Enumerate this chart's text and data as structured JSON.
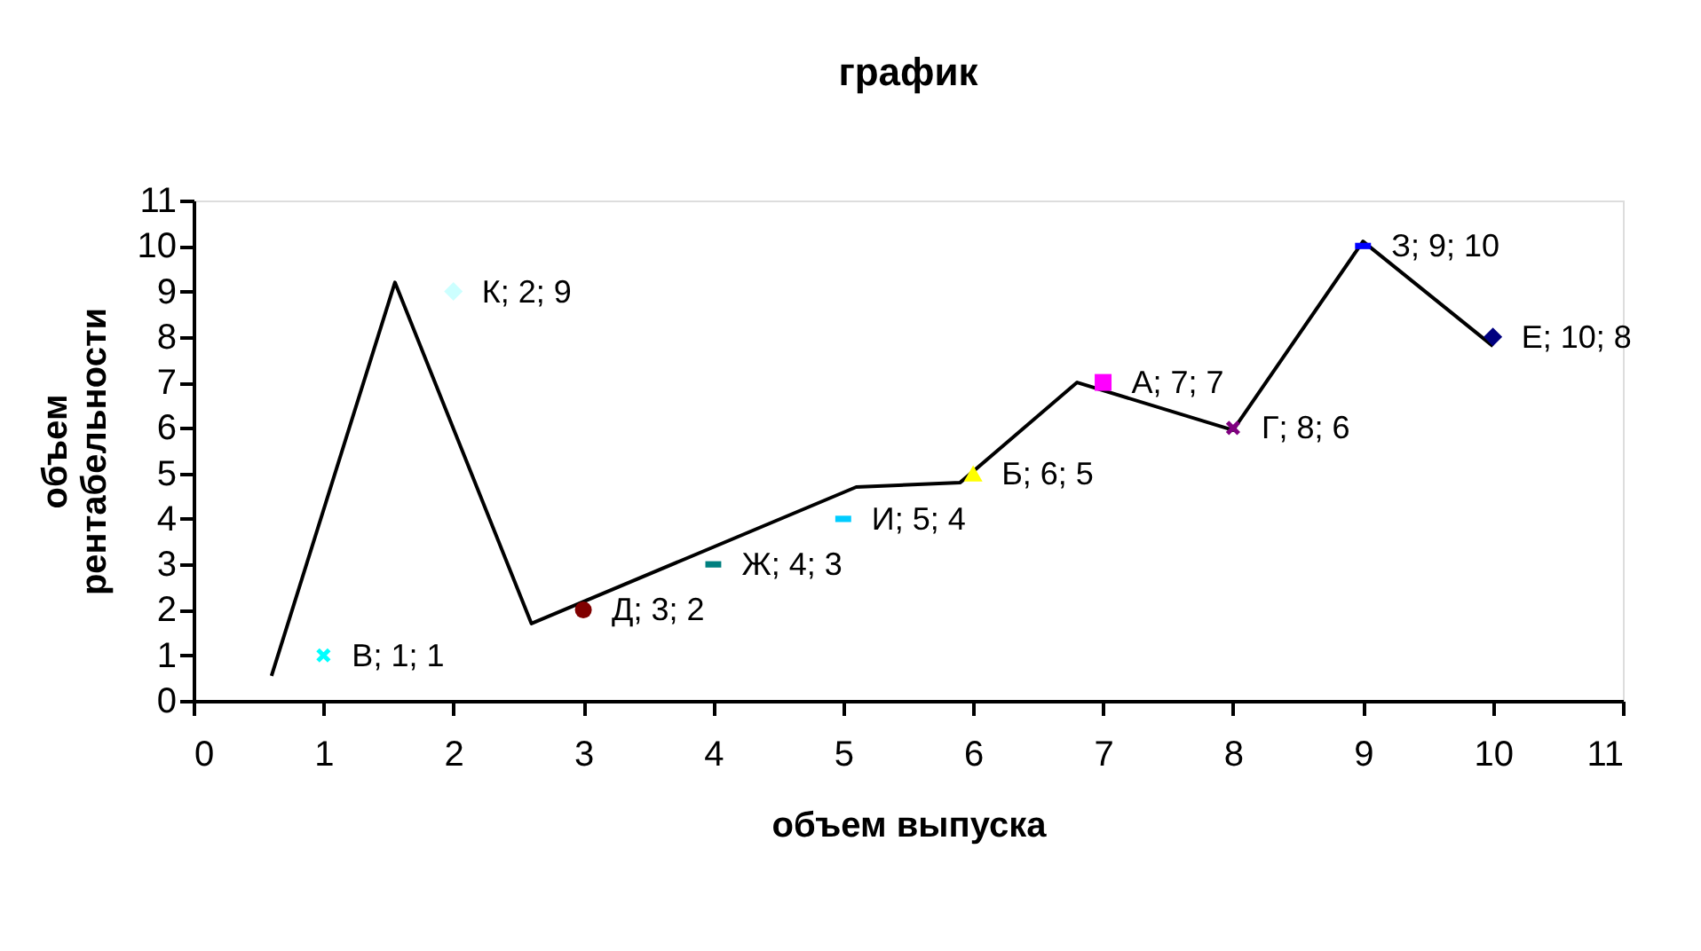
{
  "chart_data": {
    "type": "scatter",
    "title": "график",
    "xlabel": "объем выпуска",
    "ylabel": "объем\nрентабельности",
    "xlim": [
      0,
      11
    ],
    "ylim": [
      0,
      11
    ],
    "xticks": [
      0,
      1,
      2,
      3,
      4,
      5,
      6,
      7,
      8,
      9,
      10,
      11
    ],
    "yticks": [
      0,
      1,
      2,
      3,
      4,
      5,
      6,
      7,
      8,
      9,
      10,
      11
    ],
    "grid": false,
    "series": [
      {
        "type": "line",
        "color": "#000000",
        "marker": "none",
        "line_style": "solid",
        "x": [
          0.6,
          1.55,
          2.6,
          5.1,
          5.9,
          6.8,
          8,
          9,
          10
        ],
        "values": [
          0.55,
          9.2,
          1.7,
          4.7,
          4.8,
          7.0,
          5.95,
          10.1,
          7.8
        ]
      },
      {
        "color": "#00ffff",
        "marker": "cross",
        "x": [
          1
        ],
        "values": [
          1
        ],
        "value_labels": [
          "В; 1; 1"
        ]
      },
      {
        "color": "#ccffff",
        "marker": "diamond",
        "x": [
          2
        ],
        "values": [
          9
        ],
        "value_labels": [
          "К; 2; 9"
        ]
      },
      {
        "color": "#800000",
        "marker": "circle",
        "x": [
          3
        ],
        "values": [
          2
        ],
        "value_labels": [
          "Д; 3; 2"
        ]
      },
      {
        "color": "#008080",
        "x": [
          4
        ],
        "values": [
          3
        ],
        "value_labels": [
          "Ж; 4; 3"
        ]
      },
      {
        "color": "#00ccff",
        "x": [
          5
        ],
        "values": [
          4
        ],
        "value_labels": [
          "И; 5; 4"
        ]
      },
      {
        "color": "#ffff00",
        "marker": "triangle",
        "x": [
          6
        ],
        "values": [
          5
        ],
        "value_labels": [
          "Б; 6; 5"
        ]
      },
      {
        "color": "#ff00ff",
        "marker": "square",
        "x": [
          7
        ],
        "values": [
          7
        ],
        "value_labels": [
          "А; 7; 7"
        ]
      },
      {
        "color": "#800080",
        "marker": "cross",
        "x": [
          8
        ],
        "values": [
          6
        ],
        "value_labels": [
          "Г; 8; 6"
        ]
      },
      {
        "color": "#0000ff",
        "x": [
          9
        ],
        "values": [
          10
        ],
        "value_labels": [
          "З; 9; 10"
        ]
      },
      {
        "color": "#000080",
        "marker": "diamond",
        "x": [
          10
        ],
        "values": [
          8
        ],
        "value_labels": [
          "Е; 10; 8"
        ]
      }
    ]
  }
}
